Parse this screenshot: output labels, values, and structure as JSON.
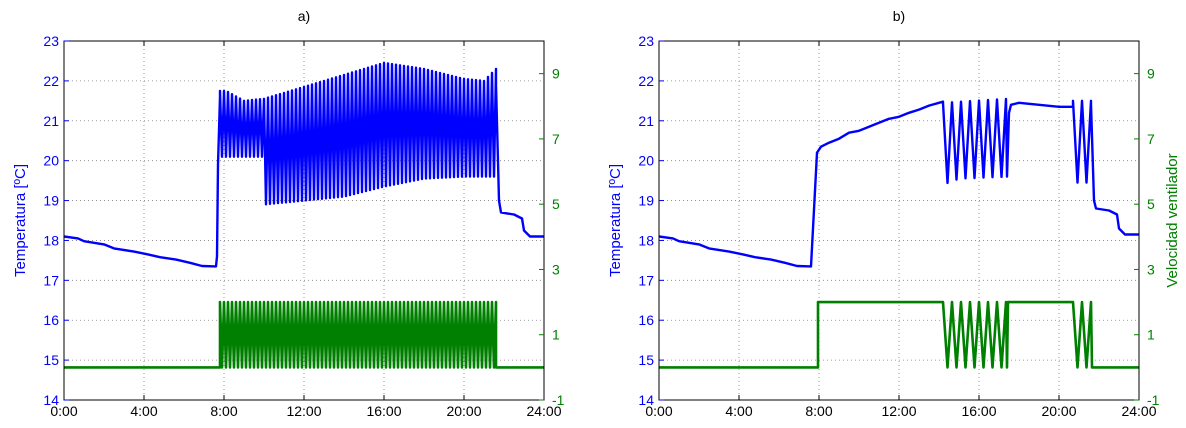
{
  "colors": {
    "temperature": "#0000ff",
    "fan_speed": "#008000",
    "grid": "#808080",
    "frame": "#000000"
  },
  "chart_data": [
    {
      "type": "line",
      "title": "a)",
      "xlabel": "",
      "ylabel": "Temperatura [ºC]",
      "y2label": "",
      "xlim": [
        0,
        24
      ],
      "ylim": [
        14,
        23
      ],
      "y2lim": [
        -1,
        10
      ],
      "x_tick_labels": [
        "0:00",
        "4:00",
        "8:00",
        "12:00",
        "16:00",
        "20:00",
        "24:00"
      ],
      "y_tick_labels": [
        "14",
        "15",
        "16",
        "17",
        "18",
        "19",
        "20",
        "21",
        "22",
        "23"
      ],
      "y2_tick_labels": [
        "-1",
        "1",
        "3",
        "5",
        "7",
        "9"
      ],
      "grid": true,
      "series": [
        {
          "axis": "left",
          "color": "#0000ff",
          "segments": [
            {
              "kind": "line",
              "points": [
                [
                  0.0,
                  18.1
                ],
                [
                  0.7,
                  18.05
                ],
                [
                  1.0,
                  17.98
                ],
                [
                  2.0,
                  17.9
                ],
                [
                  2.5,
                  17.8
                ],
                [
                  3.5,
                  17.72
                ],
                [
                  4.2,
                  17.65
                ],
                [
                  4.8,
                  17.58
                ],
                [
                  5.6,
                  17.52
                ],
                [
                  6.3,
                  17.44
                ],
                [
                  6.9,
                  17.36
                ],
                [
                  7.6,
                  17.35
                ]
              ]
            },
            {
              "kind": "jump",
              "points": [
                [
                  7.6,
                  17.35
                ],
                [
                  7.65,
                  17.6
                ],
                [
                  7.7,
                  19.9
                ],
                [
                  7.8,
                  21.6
                ]
              ]
            },
            {
              "kind": "oscillation",
              "x0": 7.8,
              "x1": 21.6,
              "period": 0.2,
              "top": [
                [
                  7.8,
                  21.75
                ],
                [
                  8.1,
                  21.75
                ],
                [
                  9.0,
                  21.5
                ],
                [
                  10.0,
                  21.55
                ],
                [
                  12.0,
                  21.85
                ],
                [
                  14.0,
                  22.15
                ],
                [
                  16.0,
                  22.45
                ],
                [
                  18.0,
                  22.3
                ],
                [
                  20.0,
                  22.05
                ],
                [
                  21.0,
                  22.0
                ],
                [
                  21.6,
                  22.3
                ]
              ],
              "bottom": [
                [
                  7.8,
                  20.1
                ],
                [
                  9.9,
                  20.1
                ],
                [
                  10.0,
                  18.9
                ],
                [
                  12.0,
                  19.0
                ],
                [
                  14.0,
                  19.1
                ],
                [
                  16.0,
                  19.35
                ],
                [
                  18.0,
                  19.55
                ],
                [
                  20.0,
                  19.6
                ],
                [
                  21.6,
                  19.6
                ]
              ]
            },
            {
              "kind": "line",
              "points": [
                [
                  21.6,
                  21.9
                ],
                [
                  21.75,
                  19.0
                ],
                [
                  21.85,
                  18.7
                ],
                [
                  22.5,
                  18.65
                ],
                [
                  22.9,
                  18.55
                ],
                [
                  23.0,
                  18.25
                ],
                [
                  23.3,
                  18.1
                ],
                [
                  24.0,
                  18.1
                ]
              ]
            }
          ]
        },
        {
          "axis": "right",
          "color": "#008000",
          "segments": [
            {
              "kind": "line",
              "points": [
                [
                  0,
                  0
                ],
                [
                  7.8,
                  0
                ]
              ]
            },
            {
              "kind": "oscillation",
              "x0": 7.8,
              "x1": 21.6,
              "period": 0.2,
              "top": [
                [
                  7.8,
                  2
                ],
                [
                  21.6,
                  2
                ]
              ],
              "bottom": [
                [
                  7.8,
                  0
                ],
                [
                  21.6,
                  0
                ]
              ]
            },
            {
              "kind": "line",
              "points": [
                [
                  21.6,
                  0
                ],
                [
                  24,
                  0
                ]
              ]
            }
          ]
        }
      ]
    },
    {
      "type": "line",
      "title": "b)",
      "xlabel": "",
      "ylabel": "Temperatura [ºC]",
      "y2label": "Velocidad ventilador",
      "xlim": [
        0,
        24
      ],
      "ylim": [
        14,
        23
      ],
      "y2lim": [
        -1,
        10
      ],
      "x_tick_labels": [
        "0:00",
        "4:00",
        "8:00",
        "12:00",
        "16:00",
        "20:00",
        "24:00"
      ],
      "y_tick_labels": [
        "14",
        "15",
        "16",
        "17",
        "18",
        "19",
        "20",
        "21",
        "22",
        "23"
      ],
      "y2_tick_labels": [
        "-1",
        "1",
        "3",
        "5",
        "7",
        "9"
      ],
      "grid": true,
      "series": [
        {
          "axis": "left",
          "color": "#0000ff",
          "segments": [
            {
              "kind": "line",
              "points": [
                [
                  0.0,
                  18.1
                ],
                [
                  0.7,
                  18.05
                ],
                [
                  1.0,
                  17.98
                ],
                [
                  2.0,
                  17.9
                ],
                [
                  2.5,
                  17.8
                ],
                [
                  3.5,
                  17.72
                ],
                [
                  4.2,
                  17.65
                ],
                [
                  4.8,
                  17.58
                ],
                [
                  5.6,
                  17.52
                ],
                [
                  6.3,
                  17.44
                ],
                [
                  6.9,
                  17.36
                ],
                [
                  7.6,
                  17.35
                ]
              ]
            },
            {
              "kind": "line",
              "points": [
                [
                  7.6,
                  17.35
                ],
                [
                  7.7,
                  18.3
                ],
                [
                  7.9,
                  20.2
                ],
                [
                  8.1,
                  20.35
                ],
                [
                  8.5,
                  20.45
                ],
                [
                  9.0,
                  20.55
                ],
                [
                  9.5,
                  20.7
                ],
                [
                  10.0,
                  20.75
                ],
                [
                  10.5,
                  20.85
                ],
                [
                  11.0,
                  20.95
                ],
                [
                  11.5,
                  21.05
                ],
                [
                  12.0,
                  21.1
                ],
                [
                  12.5,
                  21.2
                ],
                [
                  13.0,
                  21.28
                ],
                [
                  13.5,
                  21.38
                ],
                [
                  14.0,
                  21.45
                ],
                [
                  14.2,
                  21.48
                ]
              ]
            },
            {
              "kind": "oscillation",
              "x0": 14.2,
              "x1": 17.4,
              "period": 0.45,
              "top": [
                [
                  14.2,
                  21.45
                ],
                [
                  17.4,
                  21.55
                ]
              ],
              "bottom": [
                [
                  14.2,
                  19.4
                ],
                [
                  15.0,
                  19.55
                ],
                [
                  17.4,
                  19.6
                ]
              ]
            },
            {
              "kind": "line",
              "points": [
                [
                  17.4,
                  19.6
                ],
                [
                  17.5,
                  21.2
                ],
                [
                  17.6,
                  21.4
                ],
                [
                  18.0,
                  21.45
                ],
                [
                  19.0,
                  21.4
                ],
                [
                  20.0,
                  21.35
                ],
                [
                  20.7,
                  21.35
                ]
              ]
            },
            {
              "kind": "oscillation",
              "x0": 20.7,
              "x1": 21.6,
              "period": 0.45,
              "top": [
                [
                  20.7,
                  21.5
                ],
                [
                  21.6,
                  21.5
                ]
              ],
              "bottom": [
                [
                  20.7,
                  19.45
                ],
                [
                  21.6,
                  19.45
                ]
              ]
            },
            {
              "kind": "line",
              "points": [
                [
                  21.6,
                  21.4
                ],
                [
                  21.75,
                  19.0
                ],
                [
                  21.85,
                  18.8
                ],
                [
                  22.5,
                  18.75
                ],
                [
                  22.9,
                  18.65
                ],
                [
                  23.0,
                  18.3
                ],
                [
                  23.3,
                  18.15
                ],
                [
                  24.0,
                  18.15
                ]
              ]
            }
          ]
        },
        {
          "axis": "right",
          "color": "#008000",
          "segments": [
            {
              "kind": "line",
              "points": [
                [
                  0,
                  0
                ],
                [
                  7.95,
                  0
                ],
                [
                  7.95,
                  2
                ],
                [
                  14.2,
                  2
                ]
              ]
            },
            {
              "kind": "oscillation",
              "x0": 14.2,
              "x1": 17.4,
              "period": 0.45,
              "top": [
                [
                  14.2,
                  2
                ],
                [
                  17.4,
                  2
                ]
              ],
              "bottom": [
                [
                  14.2,
                  0
                ],
                [
                  17.4,
                  0
                ]
              ]
            },
            {
              "kind": "line",
              "points": [
                [
                  17.4,
                  0
                ],
                [
                  17.45,
                  2
                ],
                [
                  20.7,
                  2
                ]
              ]
            },
            {
              "kind": "oscillation",
              "x0": 20.7,
              "x1": 21.6,
              "period": 0.45,
              "top": [
                [
                  20.7,
                  2
                ],
                [
                  21.6,
                  2
                ]
              ],
              "bottom": [
                [
                  20.7,
                  0
                ],
                [
                  21.6,
                  0
                ]
              ]
            },
            {
              "kind": "line",
              "points": [
                [
                  21.6,
                  2
                ],
                [
                  21.65,
                  0
                ],
                [
                  24,
                  0
                ]
              ]
            }
          ]
        }
      ]
    }
  ]
}
